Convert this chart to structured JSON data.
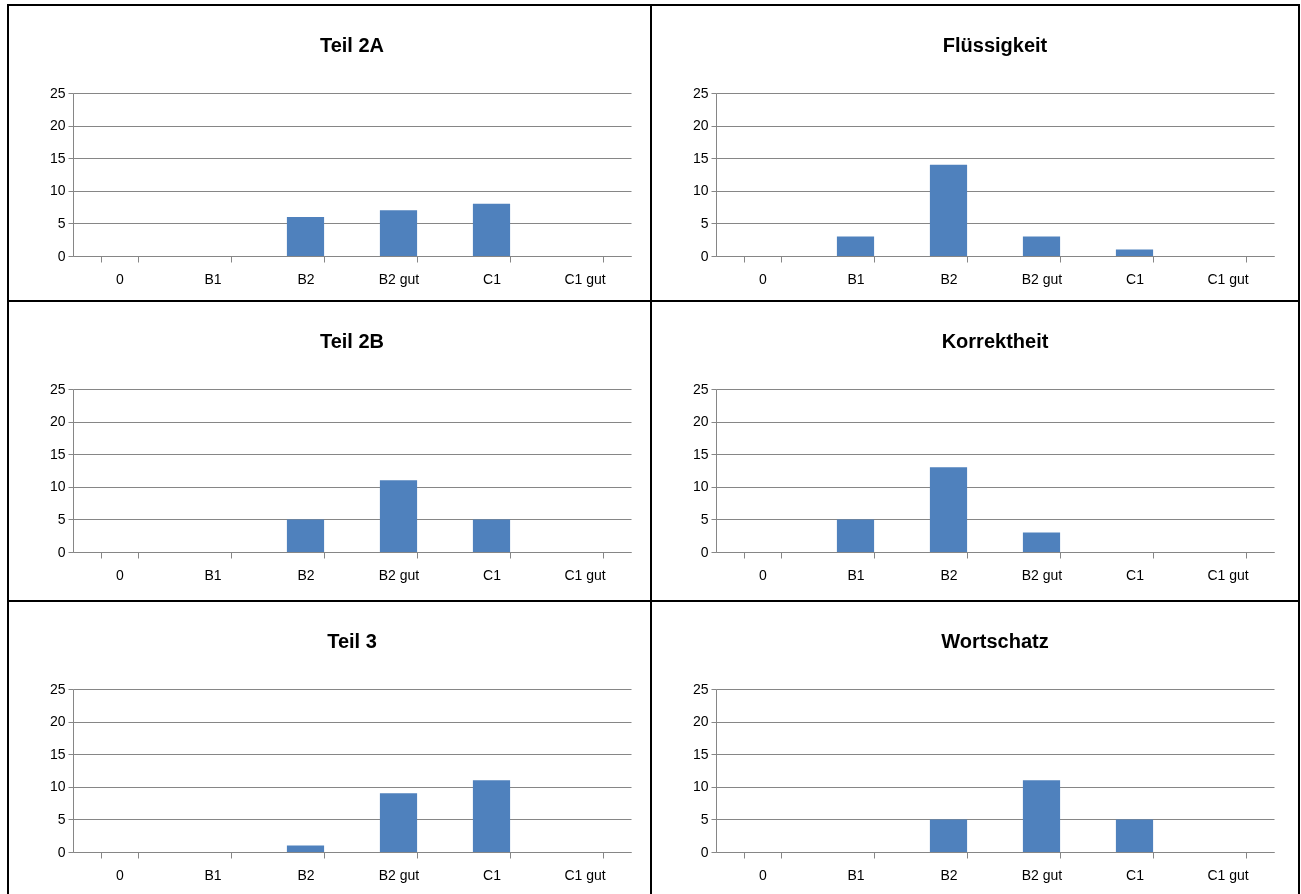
{
  "chart_data": [
    {
      "type": "bar",
      "title": "Teil 2A",
      "categories": [
        "0",
        "B1",
        "B2",
        "B2 gut",
        "C1",
        "C1 gut"
      ],
      "values": [
        0,
        0,
        6,
        7,
        8,
        0
      ],
      "color": "#4f81bd",
      "ylim": [
        0,
        25
      ],
      "yticks": [
        0,
        5,
        10,
        15,
        20,
        25
      ],
      "grid": "y"
    },
    {
      "type": "bar",
      "title": "Flüssigkeit",
      "categories": [
        "0",
        "B1",
        "B2",
        "B2 gut",
        "C1",
        "C1 gut"
      ],
      "values": [
        0,
        3,
        14,
        3,
        1,
        0
      ],
      "color": "#4f81bd",
      "ylim": [
        0,
        25
      ],
      "yticks": [
        0,
        5,
        10,
        15,
        20,
        25
      ],
      "grid": "y"
    },
    {
      "type": "bar",
      "title": "Teil 2B",
      "categories": [
        "0",
        "B1",
        "B2",
        "B2 gut",
        "C1",
        "C1 gut"
      ],
      "values": [
        0,
        0,
        5,
        11,
        5,
        0
      ],
      "color": "#4f81bd",
      "ylim": [
        0,
        25
      ],
      "yticks": [
        0,
        5,
        10,
        15,
        20,
        25
      ],
      "grid": "y"
    },
    {
      "type": "bar",
      "title": "Korrektheit",
      "categories": [
        "0",
        "B1",
        "B2",
        "B2 gut",
        "C1",
        "C1 gut"
      ],
      "values": [
        0,
        5,
        13,
        3,
        0,
        0
      ],
      "color": "#4f81bd",
      "ylim": [
        0,
        25
      ],
      "yticks": [
        0,
        5,
        10,
        15,
        20,
        25
      ],
      "grid": "y"
    },
    {
      "type": "bar",
      "title": "Teil 3",
      "categories": [
        "0",
        "B1",
        "B2",
        "B2 gut",
        "C1",
        "C1 gut"
      ],
      "values": [
        0,
        0,
        1,
        9,
        11,
        0
      ],
      "color": "#4f81bd",
      "ylim": [
        0,
        25
      ],
      "yticks": [
        0,
        5,
        10,
        15,
        20,
        25
      ],
      "grid": "y"
    },
    {
      "type": "bar",
      "title": "Wortschatz",
      "categories": [
        "0",
        "B1",
        "B2",
        "B2 gut",
        "C1",
        "C1 gut"
      ],
      "values": [
        0,
        0,
        5,
        11,
        5,
        0
      ],
      "color": "#4f81bd",
      "ylim": [
        0,
        25
      ],
      "yticks": [
        0,
        5,
        10,
        15,
        20,
        25
      ],
      "grid": "y"
    }
  ]
}
